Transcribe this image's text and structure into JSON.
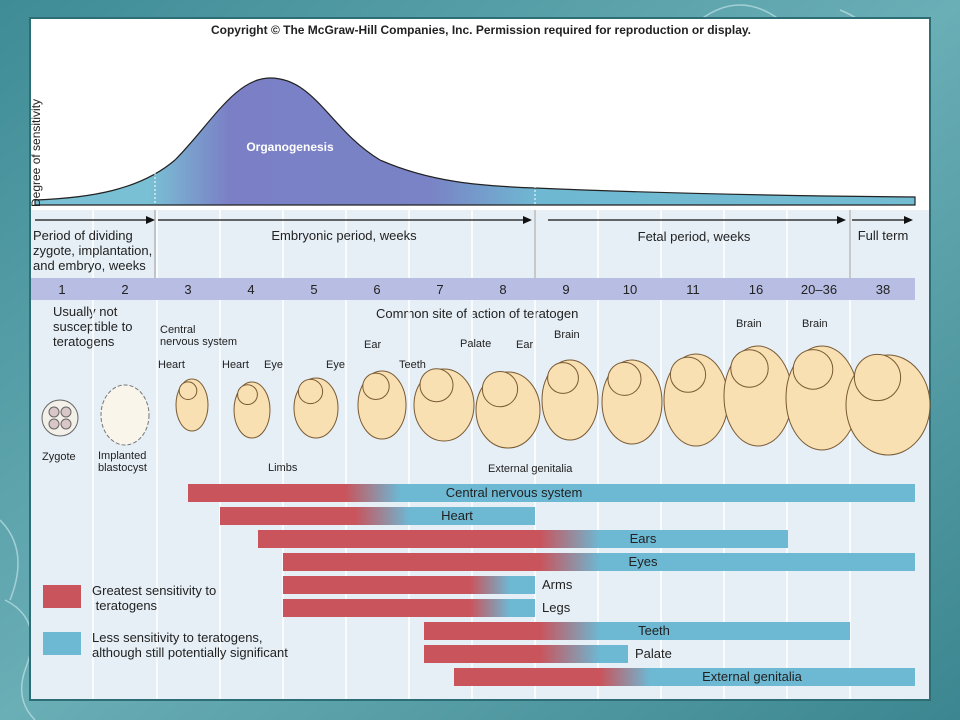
{
  "copyright": "Copyright © The McGraw-Hill Companies, Inc.   Permission required for reproduction or display.",
  "curve": {
    "axis_label": "Degree of sensitivity",
    "peak_label": "Organogenesis"
  },
  "periods": [
    {
      "lines": [
        "Period of dividing",
        "zygote, implantation,",
        "and embryo, weeks"
      ]
    },
    {
      "lines": [
        "Embryonic period, weeks"
      ]
    },
    {
      "lines": [
        "Fetal period, weeks"
      ]
    },
    {
      "lines": [
        "Full term"
      ]
    }
  ],
  "weeks": [
    "1",
    "2",
    "3",
    "4",
    "5",
    "6",
    "7",
    "8",
    "9",
    "10",
    "11",
    "16",
    "20–36",
    "38"
  ],
  "notes": {
    "not_susceptible": [
      "Usually not",
      "susceptible to",
      "teratogens"
    ],
    "common_site": "Common site of action of teratogen"
  },
  "organ_labels": [
    {
      "lines": [
        "Central",
        "nervous system"
      ]
    },
    {
      "lines": [
        "Heart"
      ]
    },
    {
      "lines": [
        "Heart"
      ]
    },
    {
      "lines": [
        "Eye"
      ]
    },
    {
      "lines": [
        "Eye"
      ]
    },
    {
      "lines": [
        "Ear"
      ]
    },
    {
      "lines": [
        "Teeth"
      ]
    },
    {
      "lines": [
        "Palate"
      ]
    },
    {
      "lines": [
        "Ear"
      ]
    },
    {
      "lines": [
        "Brain"
      ]
    },
    {
      "lines": [
        "Brain"
      ]
    },
    {
      "lines": [
        "Brain"
      ]
    },
    {
      "lines": [
        "Limbs"
      ]
    },
    {
      "lines": [
        "External genitalia"
      ]
    },
    {
      "lines": [
        "Zygote"
      ]
    },
    {
      "lines": [
        "Implanted",
        "blastocyst"
      ]
    }
  ],
  "bars": [
    "Central nervous system",
    "Heart",
    "Ears",
    "Eyes",
    "Arms",
    "Legs",
    "Teeth",
    "Palate",
    "External genitalia"
  ],
  "legend": [
    {
      "lines": [
        "Greatest sensitivity to",
        " teratogens"
      ]
    },
    {
      "lines": [
        "Less sensitivity to teratogens,",
        "although still potentially significant"
      ]
    }
  ]
}
